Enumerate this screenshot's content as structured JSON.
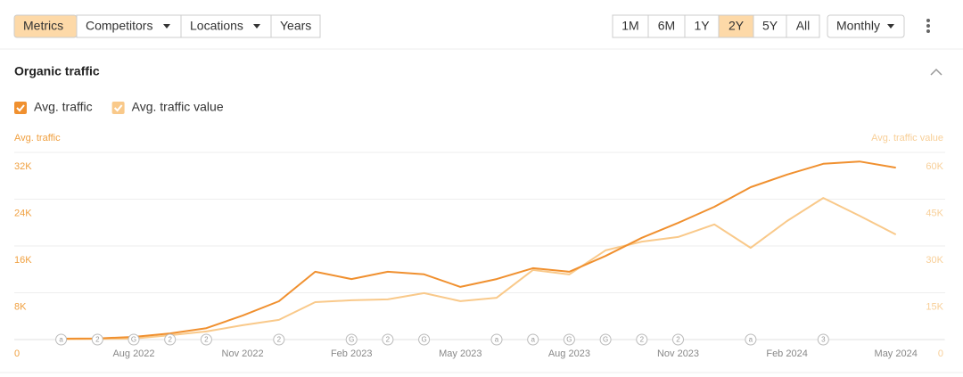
{
  "toolbar": {
    "tabs": [
      "Metrics",
      "Competitors",
      "Locations",
      "Years"
    ],
    "ranges": [
      "1M",
      "6M",
      "1Y",
      "2Y",
      "5Y",
      "All"
    ],
    "interval": "Monthly"
  },
  "section_title": "Organic traffic",
  "chart_data": {
    "type": "line",
    "ylabel": "Avg. traffic",
    "y2label": "Avg. traffic value",
    "categories": [
      null,
      null,
      "Aug 2022",
      null,
      null,
      "Nov 2022",
      null,
      null,
      "Feb 2023",
      null,
      null,
      "May 2023",
      null,
      null,
      "Aug 2023",
      null,
      null,
      "Nov 2023",
      null,
      null,
      "Feb 2024",
      null,
      null,
      "May 2024"
    ],
    "series": [
      {
        "name": "Avg. traffic",
        "color": "#f0902f",
        "values": [
          150,
          200,
          450,
          1050,
          1950,
          4100,
          6550,
          11600,
          10350,
          11600,
          11150,
          9000,
          10350,
          12200,
          11600,
          14300,
          17400,
          19950,
          22700,
          26050,
          28200,
          30050,
          30450,
          29400
        ]
      },
      {
        "name": "Avg. traffic value",
        "color": "#f9c98a",
        "axis": "y2",
        "values": [
          100,
          200,
          300,
          1400,
          2600,
          4600,
          6300,
          12000,
          12600,
          12900,
          14900,
          12300,
          13400,
          22300,
          20900,
          28600,
          31400,
          32900,
          36900,
          29400,
          38000,
          45400,
          39700,
          33700
        ]
      }
    ],
    "event_markers": [
      "a",
      "2",
      "G",
      "2",
      "2",
      null,
      "2",
      null,
      "G",
      "2",
      "G",
      null,
      "a",
      "a",
      "G",
      "G",
      "2",
      "2",
      null,
      "a",
      null,
      "3",
      null,
      null
    ],
    "ylim": [
      0,
      32000
    ],
    "yticks": [
      0,
      {
        "value": 8000,
        "label": "8K"
      },
      {
        "value": 16000,
        "label": "16K"
      },
      {
        "value": 24000,
        "label": "24K"
      },
      {
        "value": 32000,
        "label": "32K"
      }
    ],
    "y2lim": [
      0,
      60000
    ],
    "y2ticks": [
      0,
      {
        "value": 15000,
        "label": "15K"
      },
      {
        "value": 30000,
        "label": "30K"
      },
      {
        "value": 45000,
        "label": "45K"
      },
      {
        "value": 60000,
        "label": "60K"
      }
    ],
    "grid": true
  }
}
